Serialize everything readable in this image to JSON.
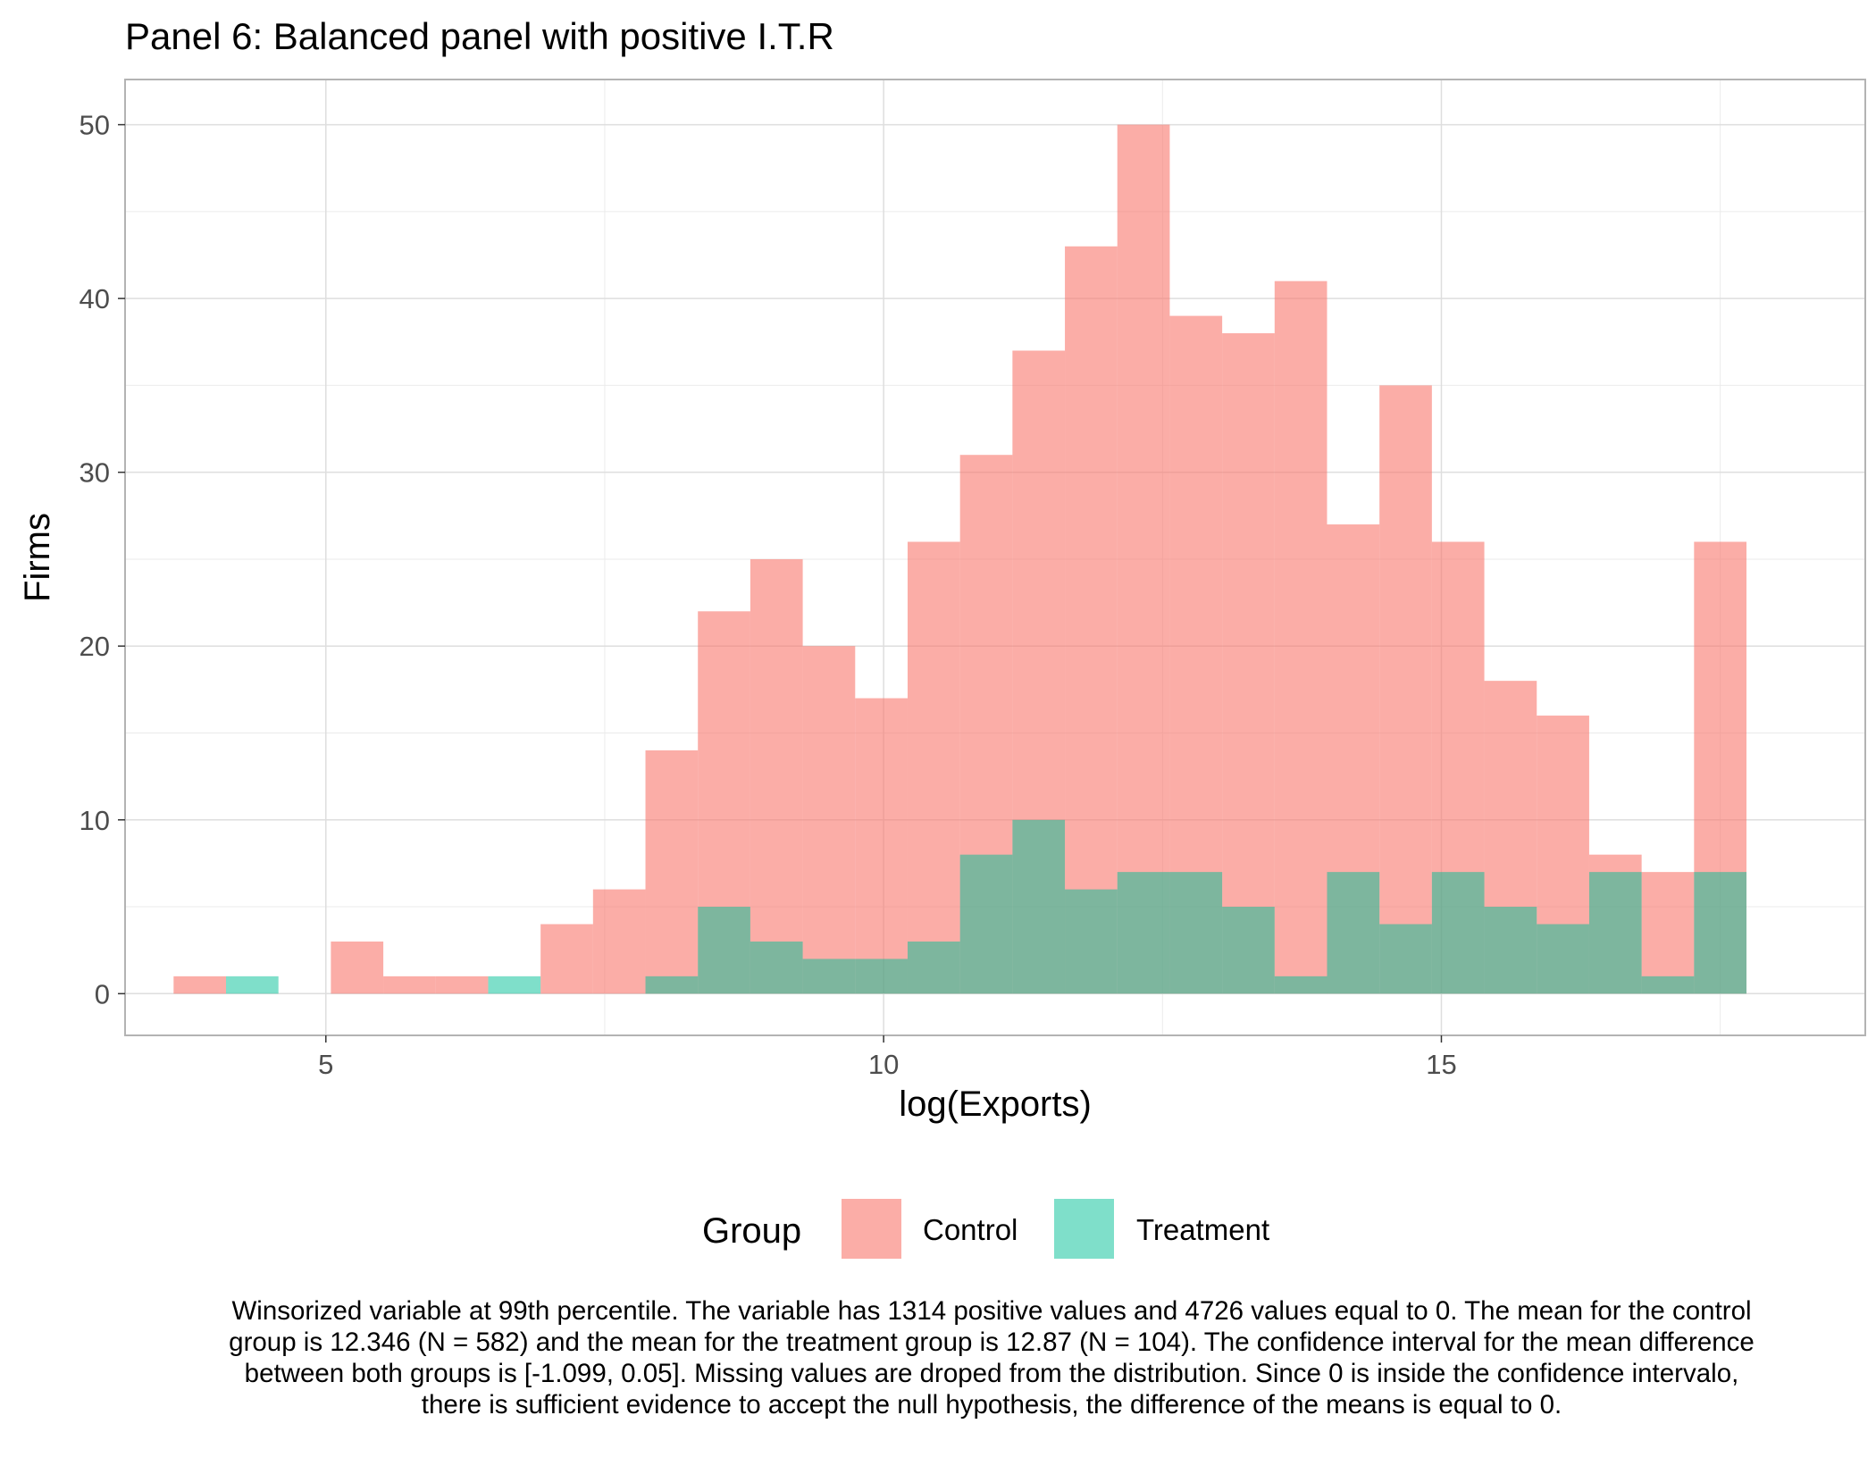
{
  "chart_data": {
    "type": "bar",
    "subtype": "overlaid-histogram",
    "title": "Panel 6: Balanced panel with positive I.T.R",
    "xlabel": "log(Exports)",
    "ylabel": "Firms",
    "xlim": [
      3.2,
      18.8
    ],
    "ylim": [
      -2.4,
      52.6
    ],
    "x_ticks": [
      5,
      10,
      15
    ],
    "y_ticks": [
      0,
      10,
      20,
      30,
      40,
      50
    ],
    "grid": true,
    "bin_width": 0.47,
    "legend_position": "bottom",
    "legend_title": "Group",
    "series": [
      {
        "name": "Control",
        "color": "#F8766D",
        "bins": [
          {
            "x": 3.87,
            "value": 1
          },
          {
            "x": 5.28,
            "value": 3
          },
          {
            "x": 5.75,
            "value": 1
          },
          {
            "x": 6.22,
            "value": 1
          },
          {
            "x": 7.16,
            "value": 4
          },
          {
            "x": 7.63,
            "value": 6
          },
          {
            "x": 8.1,
            "value": 14
          },
          {
            "x": 8.57,
            "value": 22
          },
          {
            "x": 9.04,
            "value": 25
          },
          {
            "x": 9.51,
            "value": 20
          },
          {
            "x": 9.98,
            "value": 17
          },
          {
            "x": 10.45,
            "value": 26
          },
          {
            "x": 10.92,
            "value": 31
          },
          {
            "x": 11.39,
            "value": 37
          },
          {
            "x": 11.86,
            "value": 43
          },
          {
            "x": 12.33,
            "value": 50
          },
          {
            "x": 12.8,
            "value": 39
          },
          {
            "x": 13.27,
            "value": 38
          },
          {
            "x": 13.74,
            "value": 41
          },
          {
            "x": 14.21,
            "value": 27
          },
          {
            "x": 14.68,
            "value": 35
          },
          {
            "x": 15.15,
            "value": 26
          },
          {
            "x": 15.62,
            "value": 18
          },
          {
            "x": 16.09,
            "value": 16
          },
          {
            "x": 16.56,
            "value": 8
          },
          {
            "x": 17.03,
            "value": 7
          },
          {
            "x": 17.5,
            "value": 26
          }
        ]
      },
      {
        "name": "Treatment",
        "color": "#00BF96",
        "bins": [
          {
            "x": 4.34,
            "value": 1
          },
          {
            "x": 6.69,
            "value": 1
          },
          {
            "x": 8.1,
            "value": 1
          },
          {
            "x": 8.57,
            "value": 5
          },
          {
            "x": 9.04,
            "value": 3
          },
          {
            "x": 9.51,
            "value": 2
          },
          {
            "x": 9.98,
            "value": 2
          },
          {
            "x": 10.45,
            "value": 3
          },
          {
            "x": 10.92,
            "value": 8
          },
          {
            "x": 11.39,
            "value": 10
          },
          {
            "x": 11.86,
            "value": 6
          },
          {
            "x": 12.33,
            "value": 7
          },
          {
            "x": 12.8,
            "value": 7
          },
          {
            "x": 13.27,
            "value": 5
          },
          {
            "x": 13.74,
            "value": 1
          },
          {
            "x": 14.21,
            "value": 7
          },
          {
            "x": 14.68,
            "value": 4
          },
          {
            "x": 15.15,
            "value": 7
          },
          {
            "x": 15.62,
            "value": 5
          },
          {
            "x": 16.09,
            "value": 4
          },
          {
            "x": 16.56,
            "value": 7
          },
          {
            "x": 17.03,
            "value": 1
          },
          {
            "x": 17.5,
            "value": 7
          }
        ]
      }
    ],
    "caption": "Winsorized variable at 99th percentile. The variable has 1314 positive values and 4726 values equal to 0. The mean for the control group is 12.346 (N = 582) and the mean for the treatment group is 12.87 (N = 104). The confidence interval for the mean difference between both groups is [-1.099, 0.05]. Missing values are droped from the distribution. Since 0 is inside the confidence intervalo, there is sufficient evidence to accept the null hypothesis, the difference of the means is equal to 0."
  }
}
